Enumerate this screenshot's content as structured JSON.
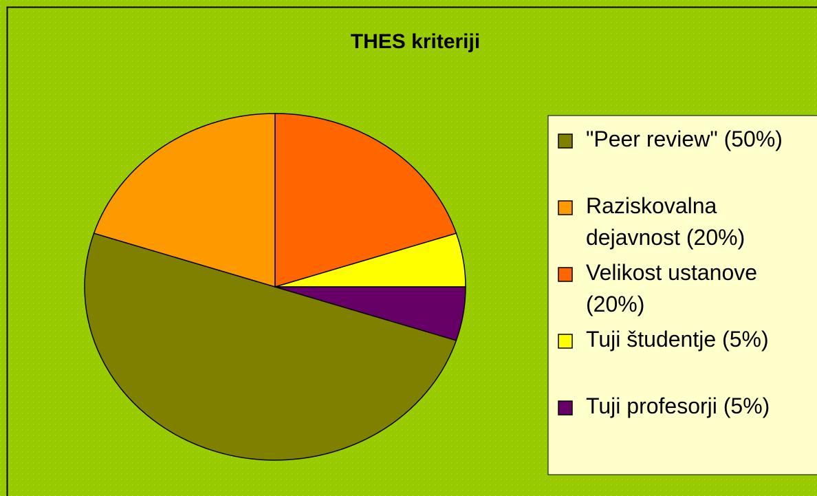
{
  "chart_data": {
    "type": "pie",
    "title": "THES kriteriji",
    "categories": [
      "\"Peer review\" (50%)",
      "Raziskovalna dejavnost (20%)",
      "Velikost ustanove (20%)",
      "Tuji študentje (5%)",
      "Tuji profesorji (5%)"
    ],
    "values": [
      50,
      20,
      20,
      5,
      5
    ],
    "colors": [
      "#808000",
      "#ff9900",
      "#ff6600",
      "#ffff00",
      "#660066"
    ],
    "legend": "right"
  }
}
